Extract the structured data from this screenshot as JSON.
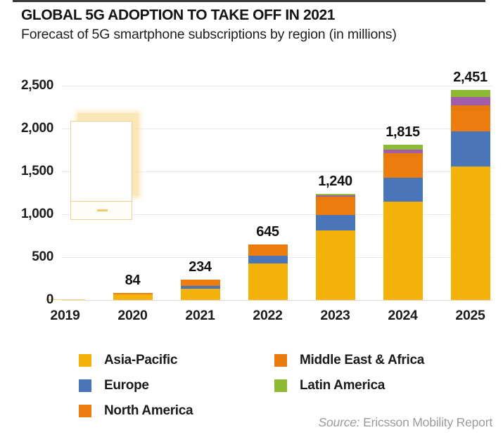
{
  "header": {
    "title": "GLOBAL 5G ADOPTION TO TAKE OFF IN 2021",
    "subtitle": "Forecast of 5G smartphone subscriptions by region (in millions)"
  },
  "chart_data": {
    "type": "bar",
    "stacked": true,
    "title": "GLOBAL 5G ADOPTION TO TAKE OFF IN 2021",
    "subtitle": "Forecast of 5G smartphone subscriptions by region (in millions)",
    "xlabel": "",
    "ylabel": "",
    "categories": [
      "2019",
      "2020",
      "2021",
      "2022",
      "2023",
      "2024",
      "2025"
    ],
    "totals": [
      10,
      84,
      234,
      645,
      1240,
      1815,
      2451
    ],
    "total_labels": [
      "",
      "84",
      "234",
      "645",
      "1,240",
      "1,815",
      "2,451"
    ],
    "series": [
      {
        "name": "Asia-Pacific",
        "color": "#F5B20A",
        "values": [
          10,
          62,
          130,
          427,
          810,
          1145,
          1560
        ]
      },
      {
        "name": "Europe",
        "color": "#4A75B8",
        "values": [
          0,
          0,
          34,
          92,
          180,
          285,
          405
        ]
      },
      {
        "name": "North America",
        "color": "#ED7D0E",
        "values": [
          0,
          22,
          70,
          110,
          180,
          230,
          240
        ]
      },
      {
        "name": "Middle East & Africa",
        "color": "#E8790B",
        "values": [
          0,
          0,
          0,
          16,
          37,
          50,
          66
        ]
      },
      {
        "name": "(unlabeled)",
        "color": "#A15DA8",
        "values": [
          0,
          0,
          0,
          0,
          13,
          48,
          98
        ]
      },
      {
        "name": "Latin America",
        "color": "#8CBA33",
        "values": [
          0,
          0,
          0,
          0,
          20,
          57,
          82
        ]
      }
    ],
    "ylim": [
      0,
      2500
    ],
    "yticks": [
      0,
      500,
      1000,
      1500,
      2000,
      2500
    ],
    "ytick_labels": [
      "0",
      "500",
      "1,000",
      "1,500",
      "2,000",
      "2,500"
    ],
    "grid": "horizontal",
    "legend_position": "bottom"
  },
  "legend": {
    "columns": [
      [
        {
          "label": "Asia-Pacific",
          "color": "#F5B20A"
        },
        {
          "label": "Europe",
          "color": "#4A75B8"
        },
        {
          "label": "North America",
          "color": "#ED7D0E"
        }
      ],
      [
        {
          "label": "Middle East & Africa",
          "color": "#E8790B"
        },
        {
          "label": "Latin America",
          "color": "#8CBA33"
        }
      ]
    ]
  },
  "source": {
    "prefix": "Source:",
    "text": " Ericsson Mobility Report"
  },
  "decor": {
    "top_strip_color": "#3a3a3a",
    "watermark_fill": "#F9E3AB",
    "watermark_border": "#EAD092",
    "gridline_color": "#E9E9E9"
  }
}
